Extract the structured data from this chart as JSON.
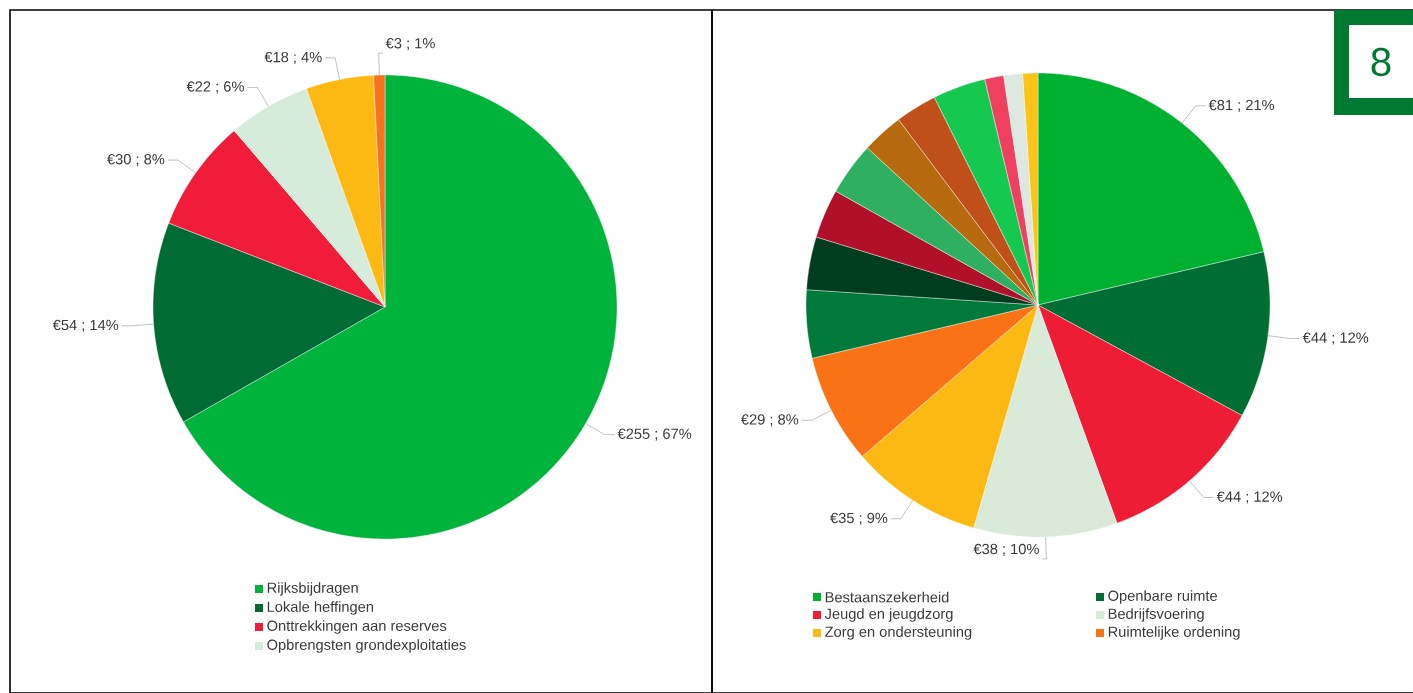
{
  "chart_data": [
    {
      "type": "pie",
      "categories": [
        "Rijksbijdragen",
        "Lokale heffingen",
        "Onttrekkingen aan reserves",
        "Opbrengsten grondexploitaties",
        null,
        null
      ],
      "values": [
        255,
        54,
        30,
        22,
        18,
        3
      ],
      "colors": [
        "#00b33c",
        "#006b35",
        "#f01c3a",
        "#d6ebd9",
        "#fdb913",
        "#f7731c"
      ],
      "value_labels": [
        "€255 ; 67%",
        "€54 ; 14%",
        "€30 ; 8%",
        "€22 ; 6%",
        "€18 ; 4%",
        "€3 ; 1%"
      ],
      "legend": "bottom"
    },
    {
      "type": "pie",
      "categories": [
        "Bestaanszekerheid",
        "Openbare ruimte",
        "Jeugd en jeugdzorg",
        "Bedrijfsvoering",
        "Zorg en ondersteuning",
        "Ruimtelijke ordening",
        null,
        null,
        null,
        null,
        null,
        null,
        null,
        null,
        null,
        null
      ],
      "values": [
        81,
        44,
        44,
        38,
        35,
        29,
        18,
        14,
        13,
        14,
        11,
        11,
        14,
        5,
        5,
        4
      ],
      "colors": [
        "#00b030",
        "#006d32",
        "#ee1c35",
        "#d9ead9",
        "#fdb913",
        "#f97316",
        "#007a3a",
        "#003d1e",
        "#b0102a",
        "#2eb060",
        "#b86a10",
        "#c0501a",
        "#14c850",
        "#f04060",
        "#dde8e0",
        "#fcc419"
      ],
      "value_labels": [
        "€81 ; 21%",
        "€44 ; 12%",
        "€44 ; 12%",
        "€38 ; 10%",
        "€35 ; 9%",
        "€29 ; 8%",
        null,
        null,
        null,
        null,
        null,
        null,
        null,
        null,
        null,
        null
      ],
      "legend": "bottom",
      "annotations": [
        "8"
      ]
    }
  ]
}
